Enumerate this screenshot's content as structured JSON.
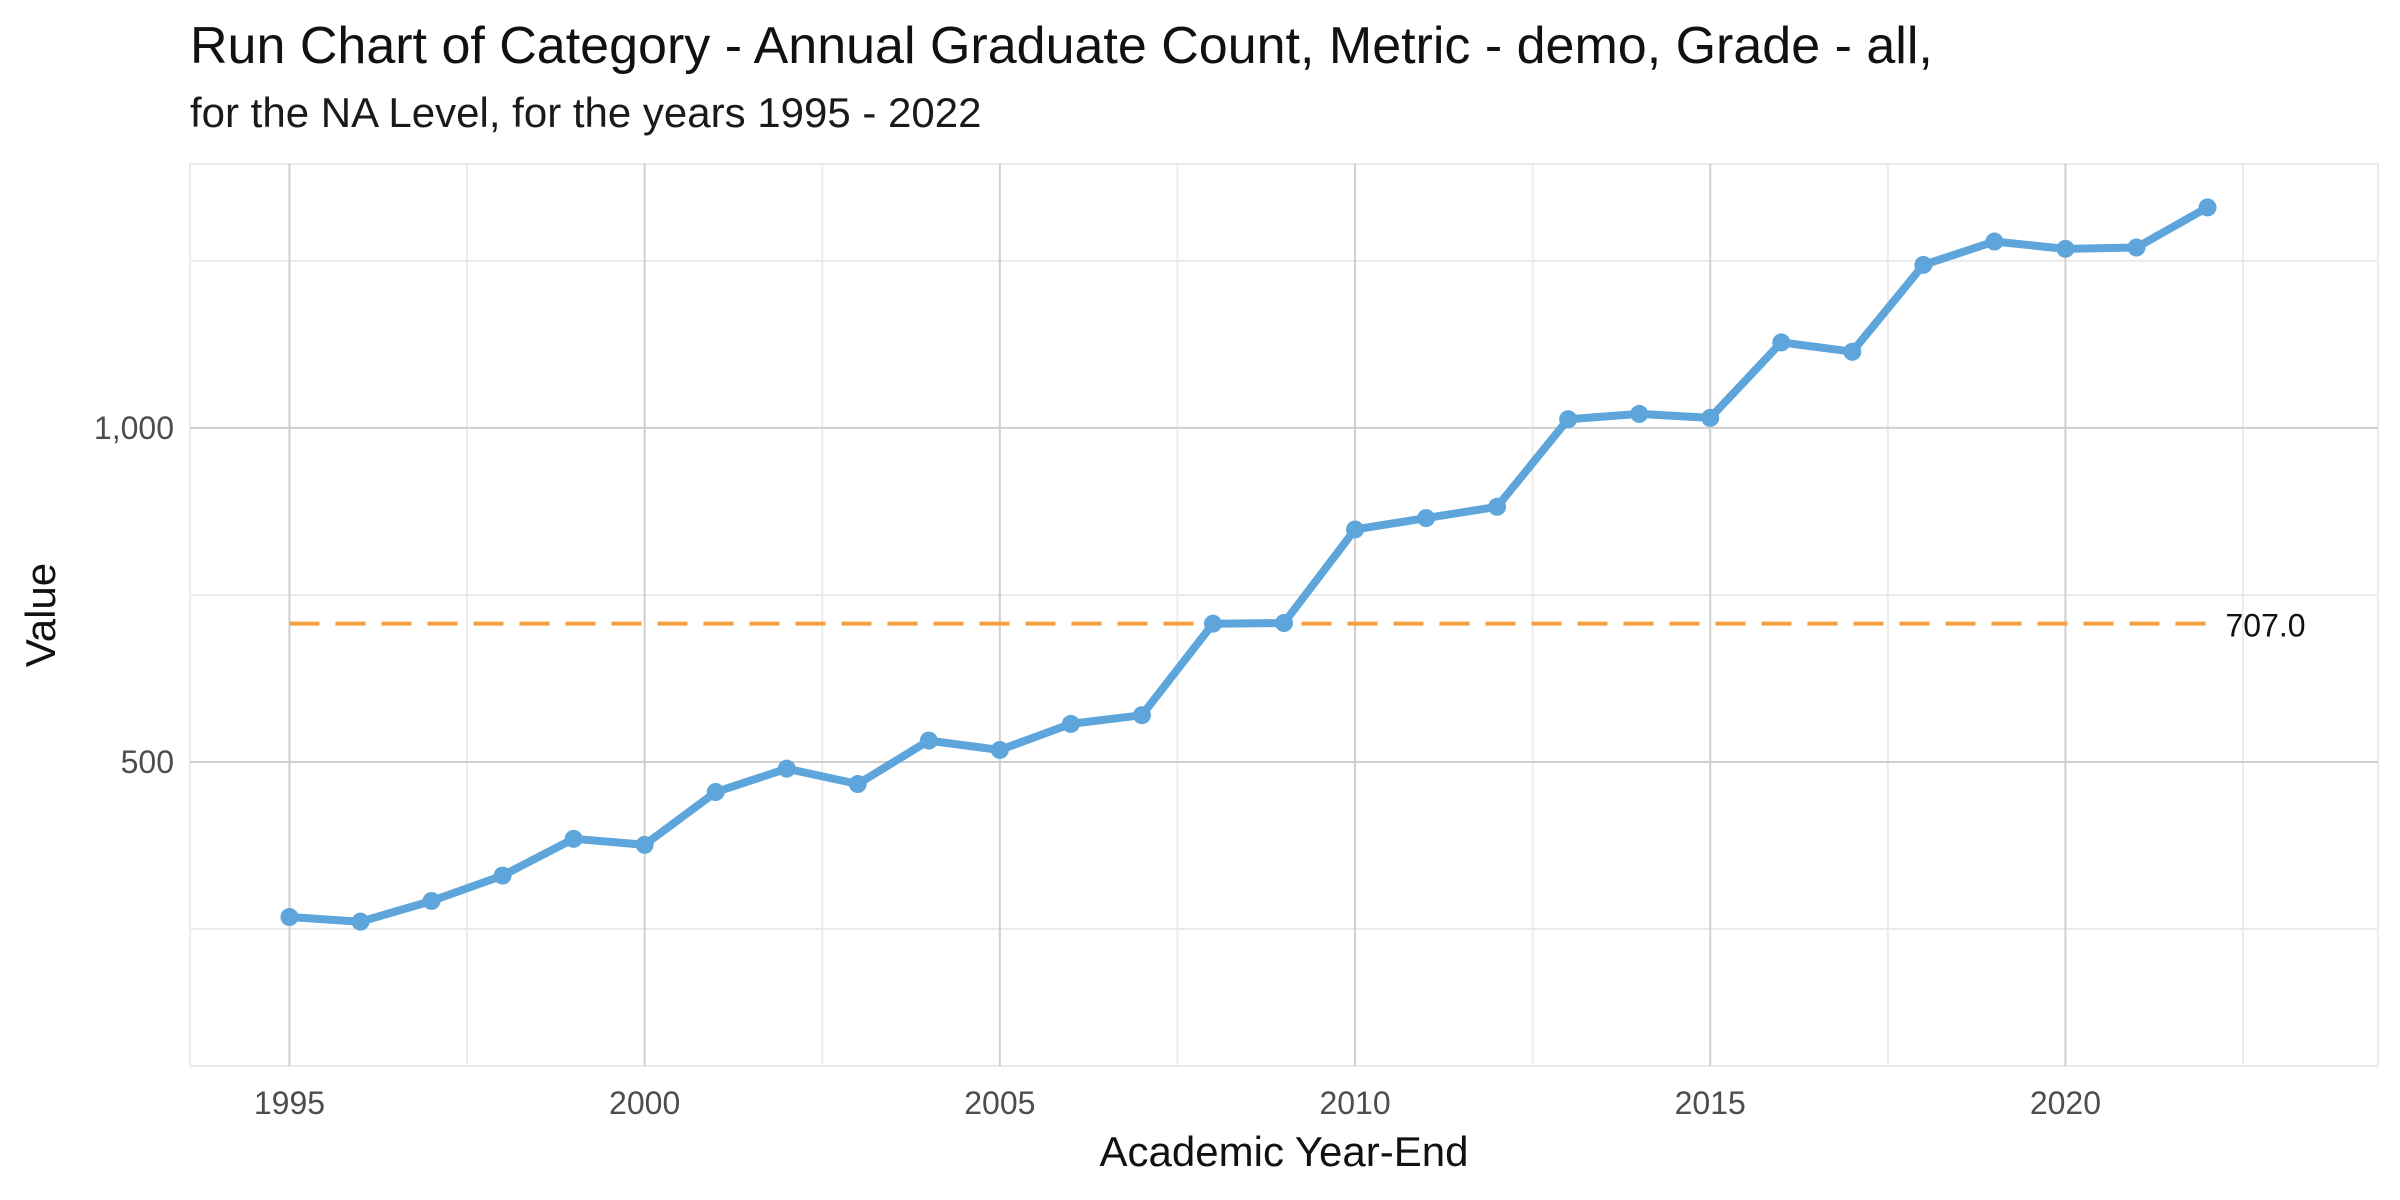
{
  "chart_data": {
    "type": "line",
    "title": "Run Chart of Category - Annual Graduate Count, Metric - demo, Grade - all,",
    "subtitle": "for the NA Level, for the years 1995 - 2022",
    "xlabel": "Academic Year-End",
    "ylabel": "Value",
    "x": [
      1995,
      1996,
      1997,
      1998,
      1999,
      2000,
      2001,
      2002,
      2003,
      2004,
      2005,
      2006,
      2007,
      2008,
      2009,
      2010,
      2011,
      2012,
      2013,
      2014,
      2015,
      2016,
      2017,
      2018,
      2019,
      2020,
      2021,
      2022
    ],
    "series": [
      {
        "values": [
          268,
          261,
          292,
          330,
          385,
          376,
          455,
          490,
          467,
          532,
          518,
          557,
          570,
          707,
          708,
          848,
          865,
          882,
          1013,
          1021,
          1015,
          1128,
          1114,
          1244,
          1279,
          1268,
          1270,
          1330
        ],
        "color": "#5DA5DA"
      }
    ],
    "reference_line": {
      "value": 707.0,
      "label": "707.0",
      "color": "#F5A040",
      "style": "dashed"
    },
    "xlim": [
      1993.6,
      2024.4
    ],
    "ylim": [
      45,
      1395
    ],
    "x_ticks": [
      1995,
      2000,
      2005,
      2010,
      2015,
      2020
    ],
    "x_tick_labels": [
      "1995",
      "2000",
      "2005",
      "2010",
      "2015",
      "2020"
    ],
    "y_ticks": [
      500,
      1000
    ],
    "y_tick_labels": [
      "500",
      "1,000"
    ],
    "x_minor_ticks": [
      1997.5,
      2002.5,
      2007.5,
      2012.5,
      2017.5,
      2022.5
    ],
    "y_minor_ticks": [
      250,
      750,
      1250
    ],
    "grid": true,
    "legend": "none"
  }
}
